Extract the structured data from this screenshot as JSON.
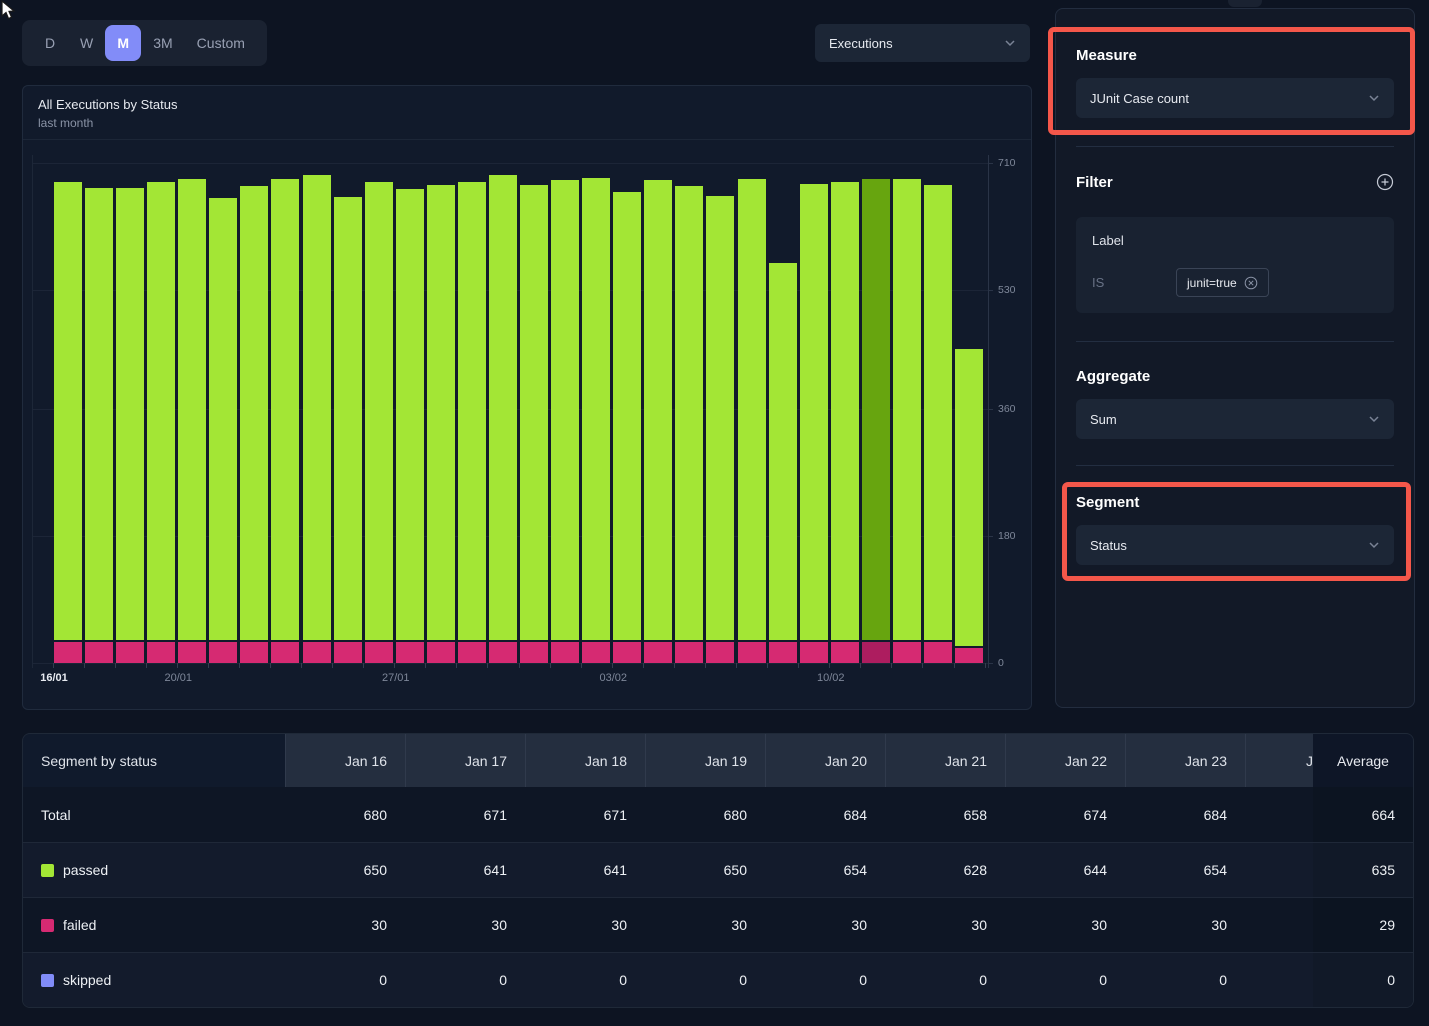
{
  "toolbar": {
    "time_buttons": [
      {
        "label": "D",
        "active": false
      },
      {
        "label": "W",
        "active": false
      },
      {
        "label": "M",
        "active": true
      },
      {
        "label": "3M",
        "active": false
      },
      {
        "label": "Custom",
        "active": false
      }
    ],
    "entity_dropdown": {
      "value": "Executions"
    }
  },
  "chart_card": {
    "title": "All Executions by Status",
    "subtitle": "last month"
  },
  "chart_data": {
    "type": "bar",
    "stacked": true,
    "title": "All Executions by Status",
    "subtitle": "last month",
    "ylim": [
      0,
      710
    ],
    "y_ticks": [
      0,
      180,
      360,
      530,
      710
    ],
    "y_tick_labels": [
      "0",
      "180",
      "360",
      "530",
      "710"
    ],
    "x_tick_marks": [
      {
        "label": "16/01",
        "bar_index": 0,
        "bold": true
      },
      {
        "label": "20/01",
        "bar_index": 4,
        "bold": false
      },
      {
        "label": "27/01",
        "bar_index": 11,
        "bold": false
      },
      {
        "label": "03/02",
        "bar_index": 18,
        "bold": false
      },
      {
        "label": "10/02",
        "bar_index": 25,
        "bold": false
      }
    ],
    "legend_position": "none",
    "grid": true,
    "highlighted_index": 26,
    "colors": {
      "passed": "#a3e635",
      "failed": "#d62a72",
      "passed_highlight": "#67a50f",
      "failed_highlight": "#ad1d5f"
    },
    "series_names": [
      "passed",
      "failed"
    ],
    "bars": [
      {
        "date": "16/01",
        "passed": 650,
        "failed": 30
      },
      {
        "date": "17/01",
        "passed": 641,
        "failed": 30
      },
      {
        "date": "18/01",
        "passed": 641,
        "failed": 30
      },
      {
        "date": "19/01",
        "passed": 650,
        "failed": 30
      },
      {
        "date": "20/01",
        "passed": 654,
        "failed": 30
      },
      {
        "date": "21/01",
        "passed": 628,
        "failed": 30
      },
      {
        "date": "22/01",
        "passed": 644,
        "failed": 30
      },
      {
        "date": "23/01",
        "passed": 654,
        "failed": 30
      },
      {
        "date": "24/01",
        "passed": 660,
        "failed": 30
      },
      {
        "date": "25/01",
        "passed": 629,
        "failed": 30
      },
      {
        "date": "26/01",
        "passed": 650,
        "failed": 30
      },
      {
        "date": "27/01",
        "passed": 640,
        "failed": 30
      },
      {
        "date": "28/01",
        "passed": 646,
        "failed": 30
      },
      {
        "date": "29/01",
        "passed": 650,
        "failed": 30
      },
      {
        "date": "30/01",
        "passed": 660,
        "failed": 30
      },
      {
        "date": "31/01",
        "passed": 646,
        "failed": 30
      },
      {
        "date": "01/02",
        "passed": 653,
        "failed": 30
      },
      {
        "date": "02/02",
        "passed": 656,
        "failed": 30
      },
      {
        "date": "03/02",
        "passed": 636,
        "failed": 30
      },
      {
        "date": "04/02",
        "passed": 653,
        "failed": 30
      },
      {
        "date": "05/02",
        "passed": 644,
        "failed": 30
      },
      {
        "date": "06/02",
        "passed": 630,
        "failed": 30
      },
      {
        "date": "07/02",
        "passed": 655,
        "failed": 30
      },
      {
        "date": "08/02",
        "passed": 535,
        "failed": 30
      },
      {
        "date": "09/02",
        "passed": 648,
        "failed": 30
      },
      {
        "date": "10/02",
        "passed": 650,
        "failed": 30
      },
      {
        "date": "11/02",
        "passed": 654,
        "failed": 30
      },
      {
        "date": "12/02",
        "passed": 654,
        "failed": 30
      },
      {
        "date": "13/02",
        "passed": 646,
        "failed": 30
      },
      {
        "date": "14/02",
        "passed": 421,
        "failed": 22
      }
    ]
  },
  "sidebar": {
    "measure": {
      "heading": "Measure",
      "value": "JUnit Case count"
    },
    "filter": {
      "heading": "Filter",
      "field": "Label",
      "operator": "IS",
      "chip": "junit=true"
    },
    "aggregate": {
      "heading": "Aggregate",
      "value": "Sum"
    },
    "segment": {
      "heading": "Segment",
      "value": "Status"
    }
  },
  "table": {
    "corner_label": "Segment by status",
    "columns": [
      "Jan 16",
      "Jan 17",
      "Jan 18",
      "Jan 19",
      "Jan 20",
      "Jan 21",
      "Jan 22",
      "Jan 23"
    ],
    "clipped_column": "J",
    "average_label": "Average",
    "rows": [
      {
        "label": "Total",
        "swatch": null,
        "values": [
          680,
          671,
          671,
          680,
          684,
          658,
          674,
          684
        ],
        "average": 664
      },
      {
        "label": "passed",
        "swatch": "#a3e635",
        "values": [
          650,
          641,
          641,
          650,
          654,
          628,
          644,
          654
        ],
        "average": 635
      },
      {
        "label": "failed",
        "swatch": "#d62a72",
        "values": [
          30,
          30,
          30,
          30,
          30,
          30,
          30,
          30
        ],
        "average": 29
      },
      {
        "label": "skipped",
        "swatch": "#818cf8",
        "values": [
          0,
          0,
          0,
          0,
          0,
          0,
          0,
          0
        ],
        "average": 0
      }
    ]
  },
  "colors": {
    "accent": "#828cf8",
    "annotation": "#f4574a",
    "passed": "#a3e635",
    "failed": "#d62a72",
    "skipped": "#818cf8"
  }
}
